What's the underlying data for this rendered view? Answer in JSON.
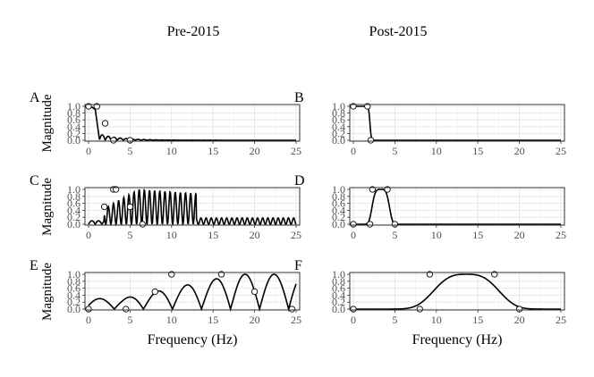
{
  "figure": {
    "column_titles": [
      "Pre-2015",
      "Post-2015"
    ],
    "xlabel": "Frequency (Hz)",
    "ylabel": "Magnitude"
  },
  "chart_data": [
    {
      "type": "line",
      "panel_label": "A",
      "xlim": [
        0,
        25
      ],
      "ylim": [
        0,
        1
      ],
      "x_ticks": [
        0,
        5,
        10,
        15,
        20,
        25
      ],
      "y_ticks": [
        "0.0",
        "0.2",
        "0.4",
        "0.6",
        "0.8",
        "1.0"
      ],
      "grid": true,
      "xlabel": "",
      "ylabel": "Magnitude",
      "curve": "lowpass",
      "points": [
        [
          0,
          1.0
        ],
        [
          1,
          1.0
        ],
        [
          2,
          0.5
        ],
        [
          3,
          0.0
        ],
        [
          5,
          0.0
        ]
      ]
    },
    {
      "type": "line",
      "panel_label": "B",
      "xlim": [
        0,
        25
      ],
      "ylim": [
        0,
        1
      ],
      "x_ticks": [
        0,
        5,
        10,
        15,
        20,
        25
      ],
      "y_ticks": [
        "0.0",
        "0.2",
        "0.4",
        "0.6",
        "0.8",
        "1.0"
      ],
      "grid": true,
      "xlabel": "",
      "ylabel": "",
      "curve": "lowpass-smooth",
      "points": [
        [
          0,
          1.0
        ],
        [
          1.7,
          1.0
        ],
        [
          2.1,
          0.0
        ]
      ]
    },
    {
      "type": "line",
      "panel_label": "C",
      "xlim": [
        0,
        25
      ],
      "ylim": [
        0,
        1
      ],
      "x_ticks": [
        0,
        5,
        10,
        15,
        20,
        25
      ],
      "y_ticks": [
        "0.0",
        "0.2",
        "0.4",
        "0.6",
        "0.8",
        "1.0"
      ],
      "grid": true,
      "xlabel": "",
      "ylabel": "Magnitude",
      "curve": "bandpass-ripple",
      "points": [
        [
          1.9,
          0.5
        ],
        [
          3.0,
          1.0
        ],
        [
          3.3,
          1.0
        ],
        [
          5.0,
          0.5
        ],
        [
          6.5,
          0.0
        ]
      ]
    },
    {
      "type": "line",
      "panel_label": "D",
      "xlim": [
        0,
        25
      ],
      "ylim": [
        0,
        1
      ],
      "x_ticks": [
        0,
        5,
        10,
        15,
        20,
        25
      ],
      "y_ticks": [
        "0.0",
        "0.2",
        "0.4",
        "0.6",
        "0.8",
        "1.0"
      ],
      "grid": true,
      "xlabel": "",
      "ylabel": "",
      "curve": "bandpass-smooth",
      "points": [
        [
          0,
          0.0
        ],
        [
          2,
          0.0
        ],
        [
          2.3,
          1.0
        ],
        [
          4.1,
          1.0
        ],
        [
          5,
          0.0
        ]
      ]
    },
    {
      "type": "line",
      "panel_label": "E",
      "xlim": [
        0,
        25
      ],
      "ylim": [
        0,
        1
      ],
      "x_ticks": [
        0,
        5,
        10,
        15,
        20,
        25
      ],
      "y_ticks": [
        "0.0",
        "0.2",
        "0.4",
        "0.6",
        "0.8",
        "1.0"
      ],
      "grid": true,
      "xlabel": "Frequency (Hz)",
      "ylabel": "Magnitude",
      "curve": "wideband-ripple",
      "points": [
        [
          0,
          0.0
        ],
        [
          4.5,
          0.0
        ],
        [
          8.0,
          0.5
        ],
        [
          10.0,
          1.0
        ],
        [
          16.0,
          1.0
        ],
        [
          20.0,
          0.5
        ],
        [
          24.5,
          0.0
        ]
      ]
    },
    {
      "type": "line",
      "panel_label": "F",
      "xlim": [
        0,
        25
      ],
      "ylim": [
        0,
        1
      ],
      "x_ticks": [
        0,
        5,
        10,
        15,
        20,
        25
      ],
      "y_ticks": [
        "0.0",
        "0.2",
        "0.4",
        "0.6",
        "0.8",
        "1.0"
      ],
      "grid": true,
      "xlabel": "Frequency (Hz)",
      "ylabel": "",
      "curve": "wideband-smooth",
      "points": [
        [
          0,
          0.0
        ],
        [
          8.0,
          0.0
        ],
        [
          9.2,
          1.0
        ],
        [
          17.0,
          1.0
        ],
        [
          20.0,
          0.0
        ]
      ]
    }
  ]
}
